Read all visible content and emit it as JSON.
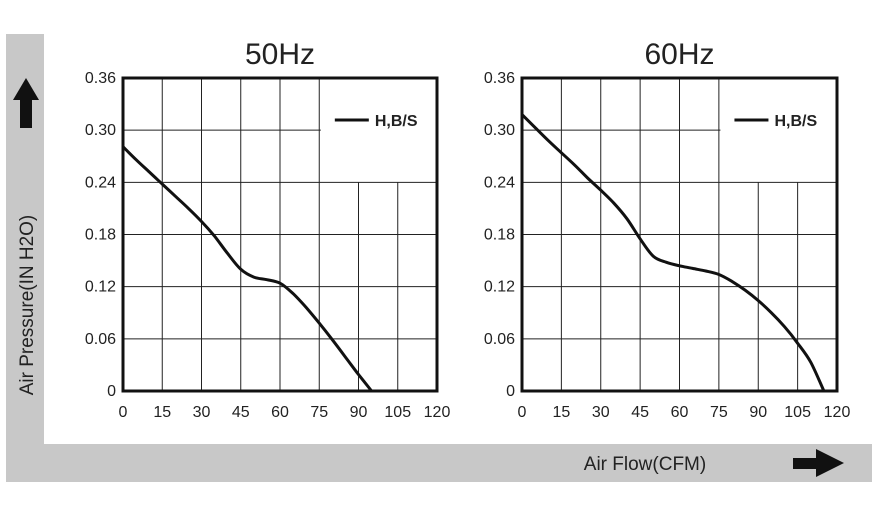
{
  "figure": {
    "ylabel": "Air Pressure(IN H2O)",
    "xlabel": "Air Flow(CFM)",
    "colors": {
      "band": "#c8c8c8",
      "line": "#111111",
      "grid": "#222222",
      "bg": "#ffffff"
    }
  },
  "chart_data": [
    {
      "type": "line",
      "title": "50Hz",
      "xlim": [
        0,
        120
      ],
      "ylim": [
        0,
        0.36
      ],
      "xticks": [
        "0",
        "15",
        "30",
        "45",
        "60",
        "75",
        "90",
        "105",
        "120"
      ],
      "yticks": [
        "0.36",
        "0.30",
        "0.24",
        "0.18",
        "0.12",
        "0.06",
        "0"
      ],
      "legend_position": "top-right",
      "series": [
        {
          "name": "H,B/S",
          "x": [
            0,
            5,
            10,
            15,
            20,
            25,
            30,
            35,
            40,
            45,
            50,
            55,
            60,
            65,
            70,
            75,
            80,
            85,
            90,
            95
          ],
          "y": [
            0.281,
            0.266,
            0.252,
            0.238,
            0.224,
            0.21,
            0.195,
            0.178,
            0.158,
            0.14,
            0.131,
            0.128,
            0.124,
            0.112,
            0.096,
            0.078,
            0.059,
            0.039,
            0.019,
            0.0
          ]
        }
      ]
    },
    {
      "type": "line",
      "title": "60Hz",
      "xlim": [
        0,
        120
      ],
      "ylim": [
        0,
        0.36
      ],
      "xticks": [
        "0",
        "15",
        "30",
        "45",
        "60",
        "75",
        "90",
        "105",
        "120"
      ],
      "yticks": [
        "0.36",
        "0.30",
        "0.24",
        "0.18",
        "0.12",
        "0.06",
        "0"
      ],
      "legend_position": "top-right",
      "series": [
        {
          "name": "H,B/S",
          "x": [
            0,
            5,
            10,
            15,
            20,
            25,
            30,
            35,
            40,
            45,
            50,
            55,
            60,
            65,
            70,
            75,
            80,
            85,
            90,
            95,
            100,
            105,
            110,
            115
          ],
          "y": [
            0.318,
            0.303,
            0.288,
            0.274,
            0.26,
            0.245,
            0.231,
            0.216,
            0.198,
            0.175,
            0.155,
            0.148,
            0.144,
            0.141,
            0.138,
            0.134,
            0.126,
            0.116,
            0.104,
            0.09,
            0.074,
            0.055,
            0.033,
            0.0
          ]
        }
      ]
    }
  ]
}
